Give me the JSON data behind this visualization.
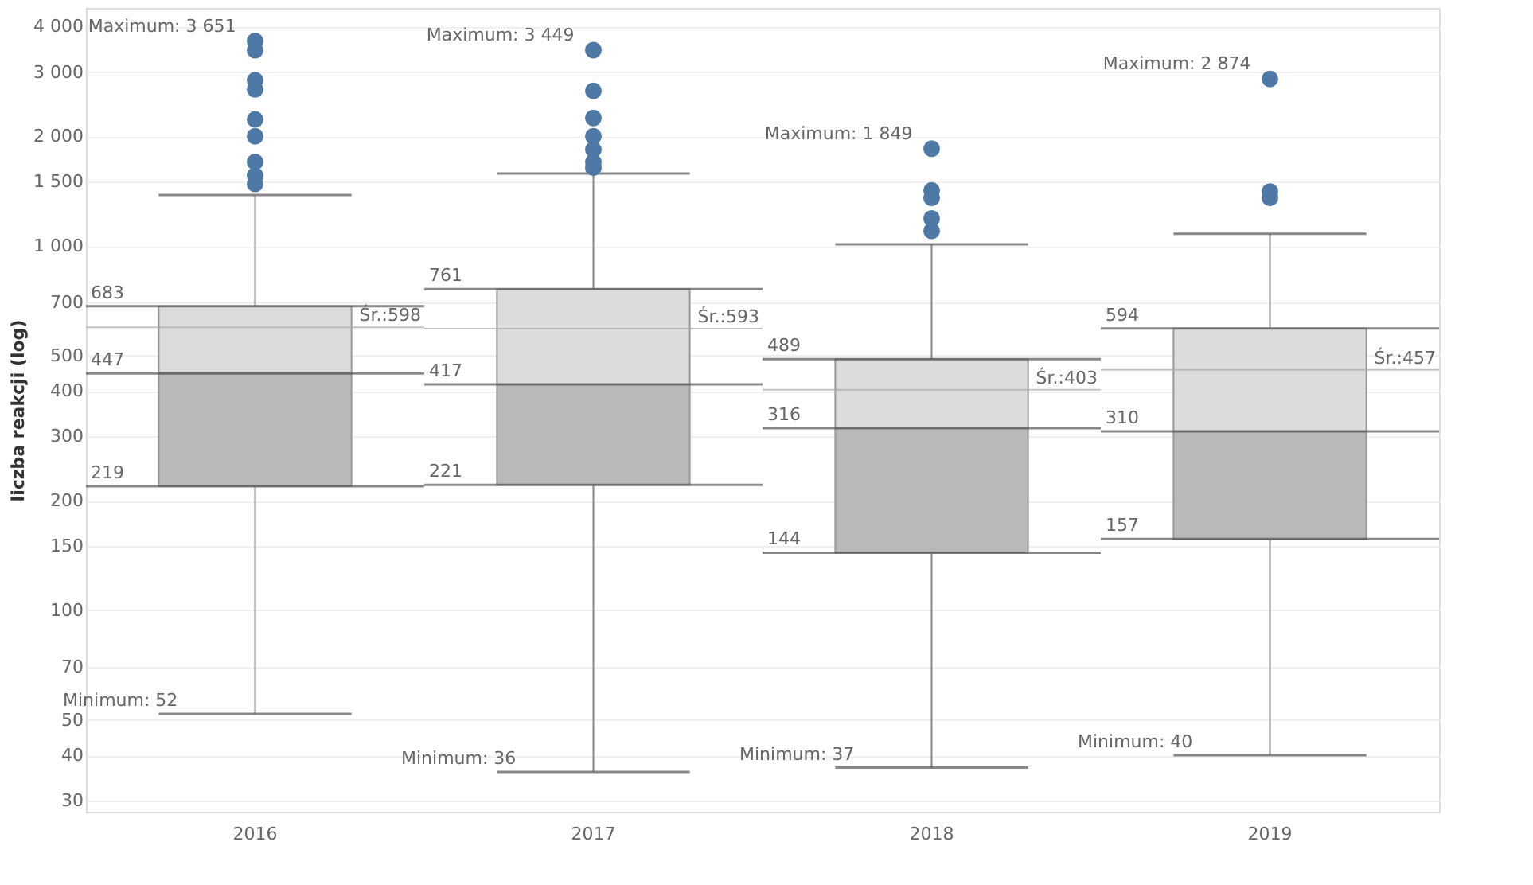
{
  "chart_data": {
    "type": "box",
    "ylabel": "liczba reakcji (log)",
    "log": true,
    "grid": "y",
    "categories": [
      "2016",
      "2017",
      "2018",
      "2019"
    ],
    "colors": [
      "#dcdcdc",
      "#b9b9b9",
      "#4e79a7"
    ],
    "series": [
      {
        "boxes": [
          {
            "low": 52,
            "q1": 219,
            "median": 447,
            "q3": 683,
            "high": 1380,
            "mean": 598,
            "outliers": [
              3651,
              3445,
              2850,
              2690,
              2225,
              2000,
              1700,
              1560,
              1480
            ]
          },
          {
            "low": 36,
            "q1": 221,
            "median": 417,
            "q3": 761,
            "high": 1580,
            "mean": 593,
            "outliers": [
              3449,
              2665,
              2245,
              2000,
              1840,
              1700,
              1640
            ]
          },
          {
            "low": 37,
            "q1": 144,
            "median": 316,
            "q3": 489,
            "high": 1010,
            "mean": 403,
            "outliers": [
              1849,
              1420,
              1355,
              1190,
              1100
            ]
          },
          {
            "low": 40,
            "q1": 157,
            "median": 310,
            "q3": 594,
            "high": 1080,
            "mean": 457,
            "outliers": [
              2874,
              1410,
              1355
            ]
          }
        ]
      }
    ],
    "ylim": [
      28,
      4500
    ],
    "yticks": [
      30,
      40,
      50,
      70,
      100,
      150,
      200,
      300,
      400,
      500,
      700,
      {
        "value": 1000,
        "label": "1 000"
      },
      {
        "value": 1500,
        "label": "1 500"
      },
      {
        "value": 2000,
        "label": "2 000"
      },
      {
        "value": 3000,
        "label": "3 000"
      },
      {
        "value": 4000,
        "label": "4 000"
      }
    ],
    "annotations": [
      "Maximum: 3 651",
      "683",
      "Śr.:598",
      "447",
      "219",
      "Minimum: 52",
      "Maximum: 3 449",
      "761",
      "Śr.:593",
      "417",
      "221",
      "Minimum: 36",
      "Maximum: 1 849",
      "489",
      "Śr.:403",
      "316",
      "144",
      "Minimum: 37",
      "Maximum: 2 874",
      "594",
      "Śr.:457",
      "310",
      "157",
      "Minimum: 40"
    ]
  }
}
